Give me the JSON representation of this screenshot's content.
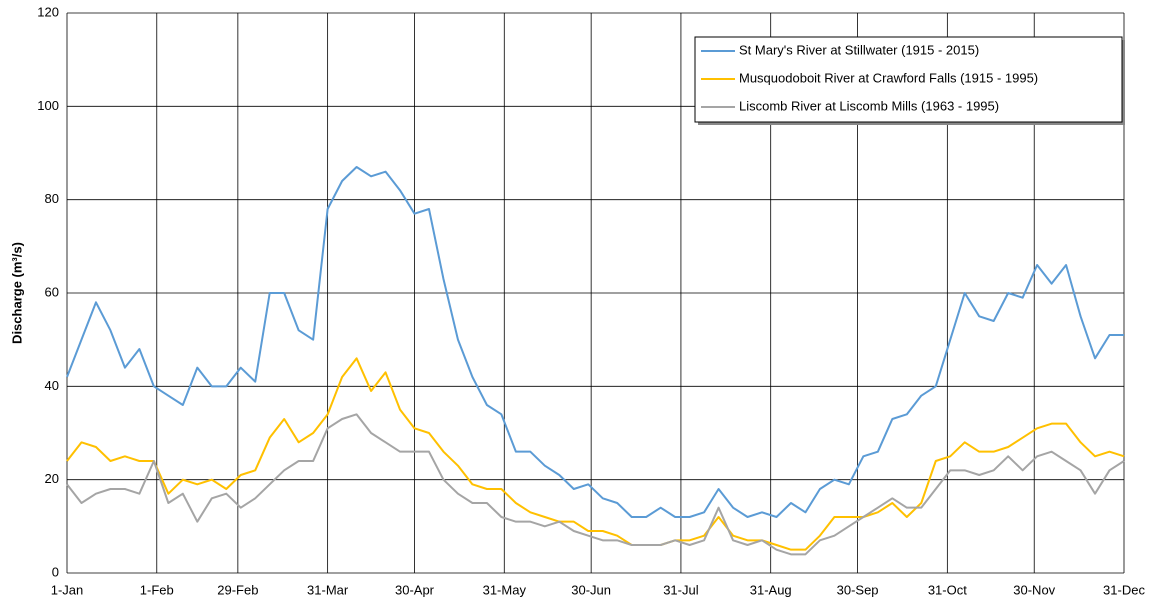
{
  "chart_data": {
    "type": "line",
    "y_label": "Discharge  (m³/s)",
    "x": [
      0,
      5,
      10,
      15,
      20,
      25,
      30,
      35,
      40,
      45,
      50,
      55,
      60,
      65,
      70,
      75,
      80,
      85,
      90,
      95,
      100,
      105,
      110,
      115,
      120,
      125,
      130,
      135,
      140,
      145,
      150,
      155,
      160,
      165,
      170,
      175,
      180,
      185,
      190,
      195,
      200,
      205,
      210,
      215,
      220,
      225,
      230,
      235,
      240,
      245,
      250,
      255,
      260,
      265,
      270,
      275,
      280,
      285,
      290,
      295,
      300,
      305,
      310,
      315,
      320,
      325,
      330,
      335,
      340,
      345,
      350,
      355,
      360,
      365
    ],
    "series": [
      {
        "name": "St Mary's River at Stillwater (1915 - 2015)",
        "color": "#5b9bd5",
        "values": [
          42,
          50,
          58,
          52,
          44,
          48,
          40,
          38,
          36,
          44,
          40,
          40,
          44,
          41,
          60,
          60,
          52,
          50,
          78,
          84,
          87,
          85,
          86,
          82,
          77,
          78,
          63,
          50,
          42,
          36,
          34,
          26,
          26,
          23,
          21,
          18,
          19,
          16,
          15,
          12,
          12,
          14,
          12,
          12,
          13,
          18,
          14,
          12,
          13,
          12,
          15,
          13,
          18,
          20,
          19,
          25,
          26,
          33,
          34,
          38,
          40,
          50,
          60,
          55,
          54,
          60,
          59,
          66,
          62,
          66,
          55,
          46,
          51,
          51
        ]
      },
      {
        "name": "Musquodoboit River at Crawford Falls (1915 - 1995)",
        "color": "#ffc000",
        "values": [
          24,
          28,
          27,
          24,
          25,
          24,
          24,
          17,
          20,
          19,
          20,
          18,
          21,
          22,
          29,
          33,
          28,
          30,
          34,
          42,
          46,
          39,
          43,
          35,
          31,
          30,
          26,
          23,
          19,
          18,
          18,
          15,
          13,
          12,
          11,
          11,
          9,
          9,
          8,
          6,
          6,
          6,
          7,
          7,
          8,
          12,
          8,
          7,
          7,
          6,
          5,
          5,
          8,
          12,
          12,
          12,
          13,
          15,
          12,
          15,
          24,
          25,
          28,
          26,
          26,
          27,
          29,
          31,
          32,
          32,
          28,
          25,
          26,
          25
        ]
      },
      {
        "name": "Liscomb River at Liscomb Mills (1963 - 1995)",
        "color": "#a5a5a5",
        "values": [
          19,
          15,
          17,
          18,
          18,
          17,
          24,
          15,
          17,
          11,
          16,
          17,
          14,
          16,
          19,
          22,
          24,
          24,
          31,
          33,
          34,
          30,
          28,
          26,
          26,
          26,
          20,
          17,
          15,
          15,
          12,
          11,
          11,
          10,
          11,
          9,
          8,
          7,
          7,
          6,
          6,
          6,
          7,
          6,
          7,
          14,
          7,
          6,
          7,
          5,
          4,
          4,
          7,
          8,
          10,
          12,
          14,
          16,
          14,
          14,
          18,
          22,
          22,
          21,
          22,
          25,
          22,
          25,
          26,
          24,
          22,
          17,
          22,
          24
        ]
      }
    ],
    "xlim": [
      0,
      365
    ],
    "xticks": [
      {
        "value": 0,
        "label": "1-Jan"
      },
      {
        "value": 31,
        "label": "1-Feb"
      },
      {
        "value": 59,
        "label": "29-Feb"
      },
      {
        "value": 90,
        "label": "31-Mar"
      },
      {
        "value": 120,
        "label": "30-Apr"
      },
      {
        "value": 151,
        "label": "31-May"
      },
      {
        "value": 181,
        "label": "30-Jun"
      },
      {
        "value": 212,
        "label": "31-Jul"
      },
      {
        "value": 243,
        "label": "31-Aug"
      },
      {
        "value": 273,
        "label": "30-Sep"
      },
      {
        "value": 304,
        "label": "31-Oct"
      },
      {
        "value": 334,
        "label": "30-Nov"
      },
      {
        "value": 365,
        "label": "31-Dec"
      }
    ],
    "ylim": [
      0,
      120
    ],
    "yticks": [
      0,
      20,
      40,
      60,
      80,
      100,
      120
    ],
    "grid": true,
    "legend": "top-right"
  }
}
